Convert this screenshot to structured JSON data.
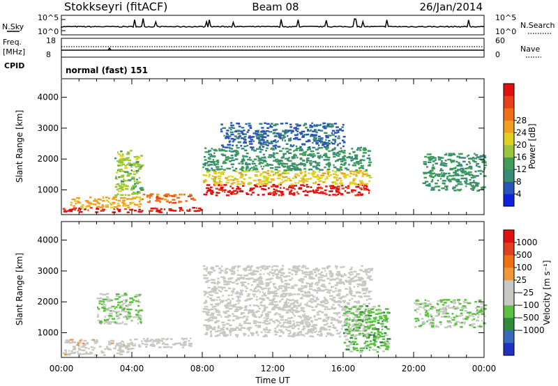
{
  "header": {
    "station": "Stokkseyri (fitACF)",
    "beam": "Beam 08",
    "date": "26/Jan/2014"
  },
  "strip_panels": {
    "nsky_label": "N.Sky",
    "nsky_ticks": [
      "10^5",
      "10^0"
    ],
    "nsearch_label": "N.Search",
    "nsearch_ticks": [
      "10^5",
      "10^0"
    ],
    "freq_label": "Freq.",
    "freq_unit": "[MHz]",
    "freq_ticks": [
      "18",
      "8"
    ],
    "nave_label": "Nave",
    "nave_ticks": [
      "60",
      "0"
    ],
    "cpid_label": "CPID",
    "cpid_value": "normal (fast) 151"
  },
  "axes": {
    "ylabel": "Slant Range [km]",
    "xlabel": "Time UT",
    "xticks": [
      "00:00",
      "04:00",
      "08:00",
      "12:00",
      "16:00",
      "20:00",
      "00:00"
    ],
    "yticks": [
      "1000",
      "2000",
      "3000",
      "4000"
    ]
  },
  "power_scale": {
    "label": "Power [dB]",
    "ticks": [
      "4",
      "8",
      "12",
      "16",
      "20",
      "24",
      "28"
    ],
    "colors": [
      "#1020e0",
      "#2a54b8",
      "#3a8a78",
      "#3f9c5a",
      "#9ac63c",
      "#e0d020",
      "#f0a020",
      "#f07018",
      "#e84018",
      "#e01010"
    ]
  },
  "velocity_scale": {
    "label": "Velocity [m s⁻¹]",
    "ticks": [
      "1000",
      "500",
      "100",
      "25",
      "−25",
      "−100",
      "−500",
      "−1000"
    ],
    "colors": [
      "#2030c0",
      "#3a6ac0",
      "#2f8a3a",
      "#5ac040",
      "#c8c8c4",
      "#c8c8c4",
      "#f09838",
      "#f07010",
      "#e04020",
      "#e01010"
    ]
  },
  "chart_data": [
    {
      "type": "heatmap",
      "title": "Power",
      "x_range": [
        "00:00",
        "24:00"
      ],
      "ylim": [
        200,
        4600
      ],
      "colorbar_label": "Power [dB]",
      "colorbar_range": [
        0,
        32
      ],
      "regions": [
        {
          "x": [
            "00:00",
            "08:00"
          ],
          "y": [
            300,
            450
          ],
          "value": 30
        },
        {
          "x": [
            "00:30",
            "04:30"
          ],
          "y": [
            450,
            800
          ],
          "value": 20
        },
        {
          "x": [
            "03:00",
            "04:30"
          ],
          "y": [
            800,
            2300
          ],
          "value": 14
        },
        {
          "x": [
            "04:30",
            "07:30"
          ],
          "y": [
            600,
            900
          ],
          "value": 24
        },
        {
          "x": [
            "08:00",
            "17:30"
          ],
          "y": [
            850,
            1200
          ],
          "value": 30
        },
        {
          "x": [
            "08:00",
            "17:30"
          ],
          "y": [
            1200,
            1650
          ],
          "value": 18
        },
        {
          "x": [
            "08:00",
            "17:30"
          ],
          "y": [
            1650,
            2400
          ],
          "value": 10
        },
        {
          "x": [
            "09:00",
            "16:00"
          ],
          "y": [
            2400,
            3200
          ],
          "value": 6
        },
        {
          "x": [
            "20:30",
            "24:00"
          ],
          "y": [
            1000,
            2200
          ],
          "value": 10
        }
      ]
    },
    {
      "type": "heatmap",
      "title": "Velocity",
      "x_range": [
        "00:00",
        "24:00"
      ],
      "ylim": [
        200,
        4600
      ],
      "colorbar_label": "Velocity [m s⁻¹]",
      "colorbar_range": [
        -1000,
        1000
      ],
      "regions": [
        {
          "x": [
            "00:00",
            "04:00"
          ],
          "y": [
            300,
            800
          ],
          "value": 80
        },
        {
          "x": [
            "02:00",
            "04:30"
          ],
          "y": [
            1300,
            2300
          ],
          "value": -200
        },
        {
          "x": [
            "04:00",
            "07:30"
          ],
          "y": [
            550,
            850
          ],
          "value": 0
        },
        {
          "x": [
            "08:00",
            "17:30"
          ],
          "y": [
            900,
            3200
          ],
          "value": 0
        },
        {
          "x": [
            "16:00",
            "18:30"
          ],
          "y": [
            400,
            1900
          ],
          "value": -300
        },
        {
          "x": [
            "20:00",
            "24:00"
          ],
          "y": [
            1200,
            2100
          ],
          "value": -200
        }
      ]
    }
  ]
}
